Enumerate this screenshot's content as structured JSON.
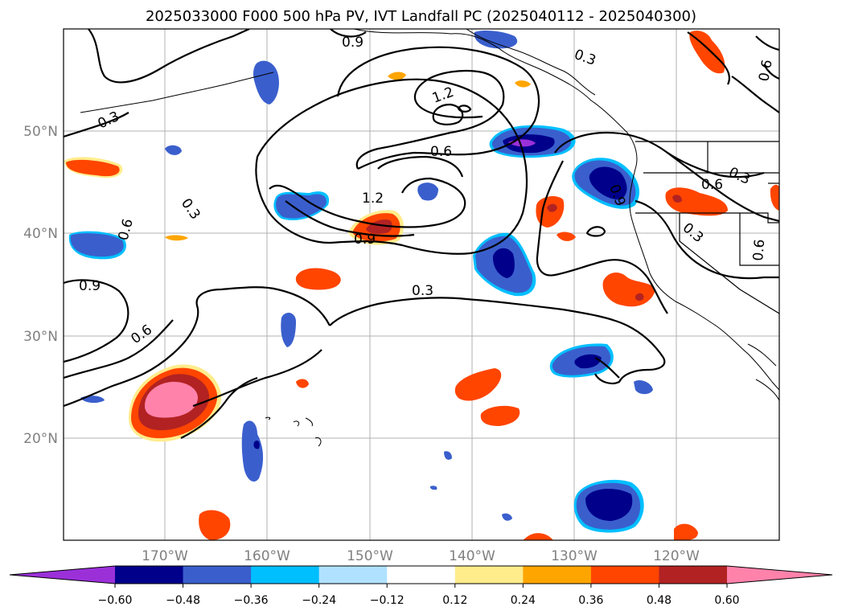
{
  "title": "2025033000 F000 500 hPa PV, IVT Landfall PC (2025040112 - 2025040300)",
  "map": {
    "lon_range": [
      -180,
      -110
    ],
    "lat_range": [
      10,
      60
    ],
    "lat_labels": [
      "50°N",
      "40°N",
      "30°N",
      "20°N"
    ],
    "lon_labels": [
      "170°W",
      "160°W",
      "150°W",
      "140°W",
      "130°W",
      "120°W"
    ]
  },
  "contour_labels": [
    "0.9",
    "0.3",
    "1.2",
    "0.6",
    "0.3",
    "0.6",
    "0.3",
    "0.6",
    "1.2",
    "0.9",
    "0.3",
    "0.3",
    "0.6",
    "0.9",
    "0.3",
    "0.9",
    "0.6",
    "0.6"
  ],
  "colorbar": {
    "ticks": [
      "−0.60",
      "−0.48",
      "−0.36",
      "−0.24",
      "−0.12",
      "0.12",
      "0.24",
      "0.36",
      "0.48",
      "0.60"
    ],
    "colors": [
      "#9b30d9",
      "#00008b",
      "#3a5fcd",
      "#00bfff",
      "#b0e2ff",
      "#ffffff",
      "#ffec8b",
      "#ffa500",
      "#ff4500",
      "#b22222",
      "#ff82ab"
    ]
  }
}
